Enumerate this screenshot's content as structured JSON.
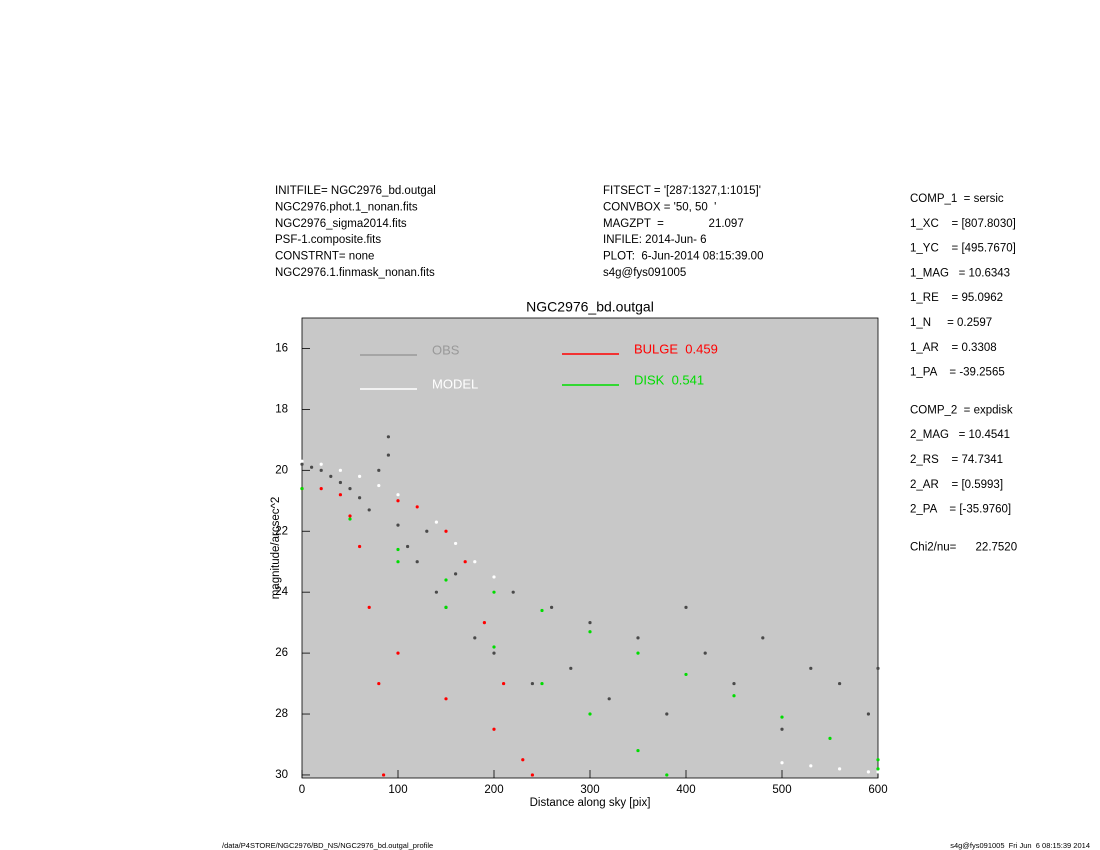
{
  "header": {
    "left": [
      "INITFILE= NGC2976_bd.outgal",
      "NGC2976.phot.1_nonan.fits",
      "NGC2976_sigma2014.fits",
      "PSF-1.composite.fits",
      "CONSTRNT= none",
      "NGC2976.1.finmask_nonan.fits"
    ],
    "middle": [
      "FITSECT = '[287:1327,1:1015]'",
      "CONVBOX = '50, 50  '",
      "MAGZPT  =              21.097",
      "INFILE: 2014-Jun- 6",
      "PLOT:  6-Jun-2014 08:15:39.00",
      "s4g@fys091005"
    ]
  },
  "params": [
    [
      "COMP_1  = sersic",
      "1_XC    = [807.8030]",
      "1_YC    = [495.7670]",
      "1_MAG   = 10.6343",
      "1_RE    = 95.0962",
      "1_N     = 0.2597",
      "1_AR    = 0.3308",
      "1_PA    = -39.2565"
    ],
    [
      "COMP_2  = expdisk",
      "2_MAG   = 10.4541",
      "2_RS    = 74.7341",
      "2_AR    = [0.5993]",
      "2_PA    = [-35.9760]"
    ],
    [
      "Chi2/nu=      22.7520"
    ]
  ],
  "footer": {
    "left": "/data/P4STORE/NGC2976/BD_NS/NGC2976_bd.outgal_profile",
    "right": "s4g@fys091005  Fri Jun  6 08:15:39 2014"
  },
  "chart_data": {
    "type": "scatter",
    "title": "NGC2976_bd.outgal",
    "xlabel": "Distance along sky [pix]",
    "ylabel": "magnitude/arcsec^2",
    "xlim": [
      0,
      600
    ],
    "ylim": [
      30.1,
      15
    ],
    "xticks": [
      0,
      100,
      200,
      300,
      400,
      500,
      600
    ],
    "yticks": [
      16,
      18,
      20,
      22,
      24,
      26,
      28,
      30
    ],
    "background": "#c8c8c8",
    "series": [
      {
        "name": "OBS",
        "color": "#4a4a4a",
        "legend_color": "#999999",
        "x": [
          0,
          10,
          20,
          30,
          40,
          50,
          60,
          70,
          80,
          90,
          90,
          100,
          110,
          120,
          130,
          140,
          150,
          160,
          180,
          200,
          220,
          240,
          260,
          280,
          300,
          320,
          350,
          380,
          400,
          420,
          450,
          480,
          500,
          530,
          560,
          590,
          600
        ],
        "values": [
          19.8,
          19.9,
          20.0,
          20.2,
          20.4,
          20.6,
          20.9,
          21.3,
          20.0,
          19.5,
          18.9,
          21.8,
          22.5,
          23.0,
          22.0,
          24.0,
          24.5,
          23.4,
          25.5,
          26.0,
          24.0,
          27.0,
          24.5,
          26.5,
          25.0,
          27.5,
          25.5,
          28.0,
          24.5,
          26.0,
          27.0,
          25.5,
          28.5,
          26.5,
          27.0,
          28.0,
          26.5
        ]
      },
      {
        "name": "MODEL",
        "color": "#ffffff",
        "legend_color": "#ffffff",
        "x": [
          0,
          20,
          40,
          60,
          80,
          100,
          120,
          140,
          160,
          180,
          200,
          500,
          530,
          560,
          590,
          600
        ],
        "values": [
          19.7,
          19.8,
          20.0,
          20.2,
          20.5,
          20.8,
          21.2,
          21.7,
          22.4,
          23.0,
          23.5,
          29.6,
          29.7,
          29.8,
          29.9,
          29.9
        ]
      },
      {
        "name": "BULGE  0.459",
        "color": "#ff0000",
        "legend_color": "#ff0000",
        "x": [
          0,
          20,
          40,
          50,
          60,
          70,
          80,
          85,
          100,
          120,
          150,
          170,
          190,
          210,
          230,
          240,
          100,
          150,
          200
        ],
        "values": [
          20.6,
          20.6,
          20.8,
          21.5,
          22.5,
          24.5,
          27.0,
          30.0,
          21.0,
          21.2,
          22.0,
          23.0,
          25.0,
          27.0,
          29.5,
          30.0,
          26.0,
          27.5,
          28.5
        ]
      },
      {
        "name": "DISK  0.541",
        "color": "#00dd00",
        "legend_color": "#00dd00",
        "x": [
          0,
          50,
          100,
          150,
          200,
          250,
          300,
          350,
          400,
          450,
          500,
          550,
          600,
          100,
          150,
          200,
          250,
          300,
          350,
          380,
          600
        ],
        "values": [
          20.6,
          21.6,
          22.6,
          23.6,
          24.0,
          24.6,
          25.3,
          26.0,
          26.7,
          27.4,
          28.1,
          28.8,
          29.5,
          23.0,
          24.5,
          25.8,
          27.0,
          28.0,
          29.2,
          30.0,
          29.8
        ]
      }
    ]
  }
}
